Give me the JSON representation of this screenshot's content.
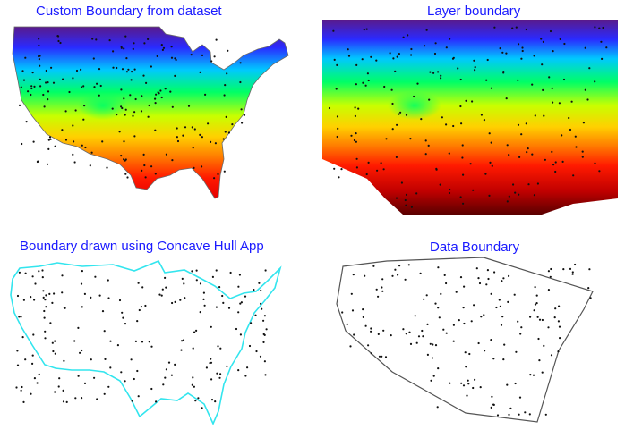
{
  "panels": [
    {
      "id": "custom",
      "title": "Custom Boundary from dataset"
    },
    {
      "id": "layer",
      "title": "Layer boundary"
    },
    {
      "id": "concave",
      "title": "Boundary drawn using Concave Hull App"
    },
    {
      "id": "data",
      "title": "Data Boundary"
    }
  ],
  "colors": {
    "title": "#1a1aff",
    "concave_hull_line": "#33e5ee",
    "data_boundary_line": "#555555",
    "points": "#111111",
    "colormap": [
      "#5a1a8a",
      "#2a2aff",
      "#00c8ff",
      "#00ff66",
      "#c8ff00",
      "#ffd000",
      "#ff7a00",
      "#ff1a00",
      "#7a0000"
    ]
  }
}
